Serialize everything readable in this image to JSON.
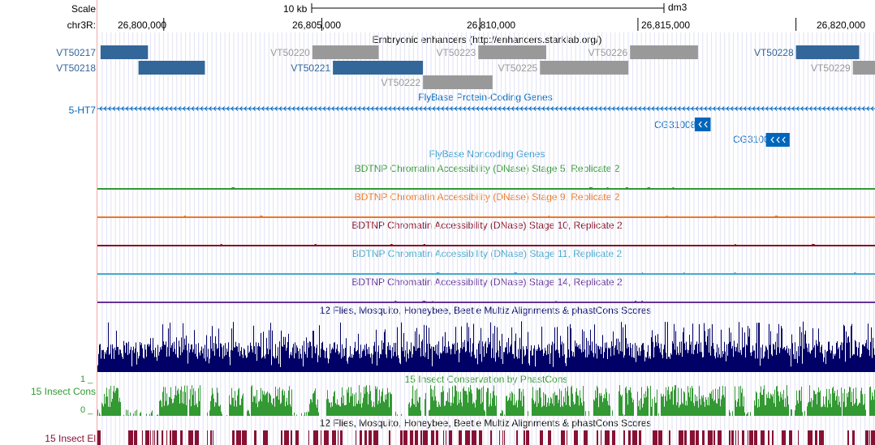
{
  "header": {
    "scale_label": "Scale",
    "scale_bar_label": "10 kb",
    "assembly": "dm3",
    "chrom_label": "chr3R:",
    "positions": [
      "26,800,000",
      "26,805,000",
      "26,810,000",
      "26,815,000",
      "26,820,000"
    ]
  },
  "tracks": {
    "enhancers": {
      "title": "Embryonic enhancers (http://enhancers.starklab.org/)",
      "blue": "#336699",
      "gray": "#999999",
      "items": [
        {
          "name": "VT50217",
          "start": 26798000,
          "end": 26799500,
          "row": 0,
          "color": "blue"
        },
        {
          "name": "VT50218",
          "start": 26799200,
          "end": 26801300,
          "row": 1,
          "color": "blue"
        },
        {
          "name": "VT50220",
          "start": 26804700,
          "end": 26806800,
          "row": 0,
          "color": "gray"
        },
        {
          "name": "VT50221",
          "start": 26805350,
          "end": 26808200,
          "row": 1,
          "color": "blue"
        },
        {
          "name": "VT50222",
          "start": 26808200,
          "end": 26810400,
          "row": 2,
          "color": "gray"
        },
        {
          "name": "VT50223",
          "start": 26809950,
          "end": 26812100,
          "row": 0,
          "color": "gray"
        },
        {
          "name": "VT50225",
          "start": 26811900,
          "end": 26814700,
          "row": 1,
          "color": "gray"
        },
        {
          "name": "VT50226",
          "start": 26814750,
          "end": 26816900,
          "row": 0,
          "color": "gray"
        },
        {
          "name": "VT50228",
          "start": 26820000,
          "end": 26822000,
          "row": 0,
          "color": "blue"
        },
        {
          "name": "VT50229",
          "start": 26821800,
          "end": 26822500,
          "row": 1,
          "color": "gray"
        }
      ]
    },
    "coding_genes": {
      "title": "FlyBase Protein-Coding Genes",
      "color": "#0066bb",
      "gene_left": "5-HT7",
      "genes": [
        {
          "name": "CG31008",
          "start": 26816800,
          "end": 26817300
        },
        {
          "name": "CG31007",
          "start": 26819050,
          "end": 26819800
        }
      ]
    },
    "noncoding": {
      "title": "FlyBase Noncoding Genes",
      "color": "#3399cc"
    },
    "dnase": [
      {
        "title": "BDTNP Chromatin Accessibility (DNase) Stage 5, Replicate 2",
        "color": "#339933"
      },
      {
        "title": "BDTNP Chromatin Accessibility (DNase) Stage 9, Replicate 2",
        "color": "#ee7722"
      },
      {
        "title": "BDTNP Chromatin Accessibility (DNase) Stage 10, Replicate 2",
        "color": "#881122"
      },
      {
        "title": "BDTNP Chromatin Accessibility (DNase) Stage 11, Replicate 2",
        "color": "#44aacc"
      },
      {
        "title": "BDTNP Chromatin Accessibility (DNase) Stage 14, Replicate 2",
        "color": "#663399"
      }
    ],
    "multiz": {
      "title": "12 Flies, Mosquito, Honeybee, Beetle Multiz Alignments & phastCons Scores",
      "color": "#000066"
    },
    "cons": {
      "title": "15 Insect Conservation by PhastCons",
      "side_label": "15 Insect Cons",
      "tick_high": "1 _",
      "tick_low": "0 _",
      "color": "#339933"
    },
    "elements": {
      "title": "12 Flies, Mosquito, Honeybee, Beetle Multiz Alignments & phastCons Scores",
      "side_label": "15 Insect El",
      "color": "#881133"
    }
  },
  "view": {
    "start": 26797900,
    "end": 26822500
  }
}
